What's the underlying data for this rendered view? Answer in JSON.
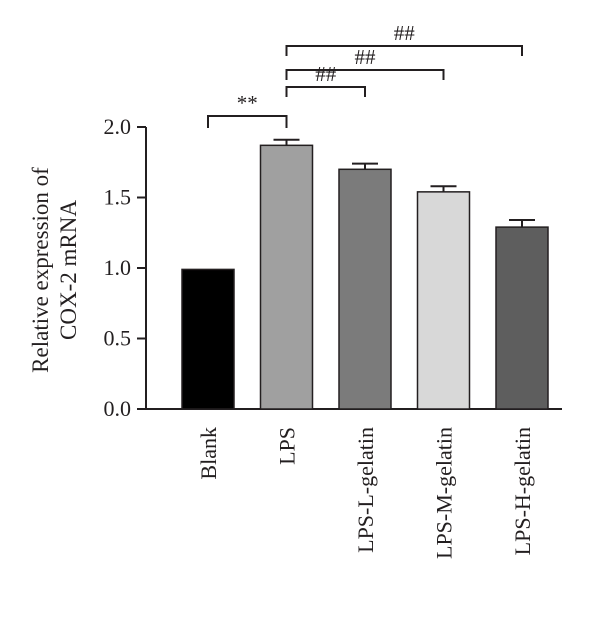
{
  "chart_data": {
    "type": "bar",
    "title": "",
    "xlabel": "",
    "ylabel": [
      "Relative expression of",
      "COX-2 mRNA"
    ],
    "ylim": [
      0,
      2.0
    ],
    "yticks": [
      0.0,
      0.5,
      1.0,
      1.5,
      2.0
    ],
    "ytick_labels": [
      "0.0",
      "0.5",
      "1.0",
      "1.5",
      "2.0"
    ],
    "categories": [
      "Blank",
      "LPS",
      "LPS-L-gelatin",
      "LPS-M-gelatin",
      "LPS-H-gelatin"
    ],
    "values": [
      0.99,
      1.87,
      1.7,
      1.54,
      1.29
    ],
    "errors": [
      0.0,
      0.04,
      0.04,
      0.04,
      0.05
    ],
    "colors": [
      "#000000",
      "#a0a0a0",
      "#7b7b7b",
      "#d8d8d8",
      "#5e5e5e"
    ],
    "significance": [
      {
        "from": "Blank",
        "to": "LPS",
        "label": "**"
      },
      {
        "from": "LPS",
        "to": "LPS-L-gelatin",
        "label": "##"
      },
      {
        "from": "LPS",
        "to": "LPS-M-gelatin",
        "label": "##"
      },
      {
        "from": "LPS",
        "to": "LPS-H-gelatin",
        "label": "##"
      }
    ]
  }
}
